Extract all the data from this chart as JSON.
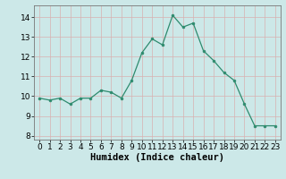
{
  "x": [
    0,
    1,
    2,
    3,
    4,
    5,
    6,
    7,
    8,
    9,
    10,
    11,
    12,
    13,
    14,
    15,
    16,
    17,
    18,
    19,
    20,
    21,
    22,
    23
  ],
  "y": [
    9.9,
    9.8,
    9.9,
    9.6,
    9.9,
    9.9,
    10.3,
    10.2,
    9.9,
    10.8,
    12.2,
    12.9,
    12.6,
    14.1,
    13.5,
    13.7,
    12.3,
    11.8,
    11.2,
    10.8,
    9.6,
    8.5,
    8.5,
    8.5
  ],
  "line_color": "#2e8b6e",
  "marker_color": "#2e8b6e",
  "bg_color": "#cce8e8",
  "grid_color": "#b0cccc",
  "xlabel": "Humidex (Indice chaleur)",
  "xlim": [
    -0.5,
    23.5
  ],
  "ylim": [
    7.8,
    14.6
  ],
  "yticks": [
    8,
    9,
    10,
    11,
    12,
    13,
    14
  ],
  "xticks": [
    0,
    1,
    2,
    3,
    4,
    5,
    6,
    7,
    8,
    9,
    10,
    11,
    12,
    13,
    14,
    15,
    16,
    17,
    18,
    19,
    20,
    21,
    22,
    23
  ],
  "xlabel_fontsize": 7.5,
  "tick_fontsize": 6.5
}
